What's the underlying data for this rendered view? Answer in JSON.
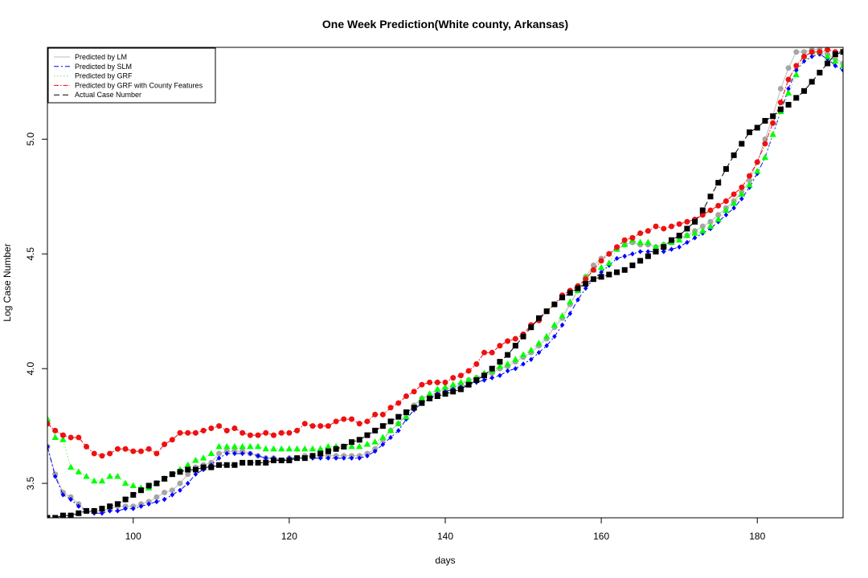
{
  "chart_data": {
    "type": "line",
    "title": "One Week Prediction(White county, Arkansas)",
    "xlabel": "days",
    "ylabel": "Log Case Number",
    "xlim": [
      89,
      191
    ],
    "ylim": [
      3.35,
      5.4
    ],
    "xticks": [
      100,
      120,
      140,
      160,
      180
    ],
    "yticks": [
      3.5,
      4.0,
      4.5,
      5.0
    ],
    "xtick_labels": [
      "100",
      "120",
      "140",
      "160",
      "180"
    ],
    "ytick_labels": [
      "3.5",
      "4.0",
      "4.5",
      "5.0"
    ],
    "grid": false,
    "legend_position": "top-left",
    "x": [
      89,
      90,
      91,
      92,
      93,
      94,
      95,
      96,
      97,
      98,
      99,
      100,
      101,
      102,
      103,
      104,
      105,
      106,
      107,
      108,
      109,
      110,
      111,
      112,
      113,
      114,
      115,
      116,
      117,
      118,
      119,
      120,
      121,
      122,
      123,
      124,
      125,
      126,
      127,
      128,
      129,
      130,
      131,
      132,
      133,
      134,
      135,
      136,
      137,
      138,
      139,
      140,
      141,
      142,
      143,
      144,
      145,
      146,
      147,
      148,
      149,
      150,
      151,
      152,
      153,
      154,
      155,
      156,
      157,
      158,
      159,
      160,
      161,
      162,
      163,
      164,
      165,
      166,
      167,
      168,
      169,
      170,
      171,
      172,
      173,
      174,
      175,
      176,
      177,
      178,
      179,
      180,
      181,
      182,
      183,
      184,
      185,
      186,
      187,
      188,
      189,
      190,
      191
    ],
    "series": [
      {
        "name": "Predicted by LM",
        "line_color": "#bbbbbb",
        "marker_color": "#a6a6a6",
        "dash": "",
        "marker": "circle",
        "values": [
          3.66,
          3.54,
          3.46,
          3.44,
          3.41,
          3.38,
          3.38,
          3.38,
          3.39,
          3.4,
          3.4,
          3.4,
          3.41,
          3.42,
          3.44,
          3.46,
          3.47,
          3.5,
          3.54,
          3.57,
          3.58,
          3.59,
          3.63,
          3.64,
          3.64,
          3.64,
          3.63,
          3.62,
          3.61,
          3.61,
          3.6,
          3.61,
          3.61,
          3.62,
          3.62,
          3.62,
          3.62,
          3.62,
          3.62,
          3.62,
          3.62,
          3.63,
          3.65,
          3.69,
          3.73,
          3.76,
          3.8,
          3.84,
          3.87,
          3.88,
          3.9,
          3.91,
          3.92,
          3.93,
          3.95,
          3.96,
          3.97,
          3.98,
          4.0,
          4.01,
          4.03,
          4.05,
          4.07,
          4.1,
          4.13,
          4.18,
          4.22,
          4.28,
          4.34,
          4.4,
          4.45,
          4.48,
          4.5,
          4.52,
          4.54,
          4.55,
          4.54,
          4.54,
          4.53,
          4.54,
          4.55,
          4.57,
          4.58,
          4.6,
          4.62,
          4.64,
          4.67,
          4.7,
          4.73,
          4.77,
          4.82,
          4.9,
          5.0,
          5.1,
          5.22,
          5.31,
          5.38,
          5.38,
          5.39,
          5.39,
          5.37,
          5.35,
          5.33
        ]
      },
      {
        "name": "Predicted by SLM",
        "line_color": "#0000ff",
        "marker_color": "#0000ff",
        "dash": "6 3 2 3",
        "marker": "diamond",
        "values": [
          3.66,
          3.53,
          3.45,
          3.43,
          3.4,
          3.38,
          3.37,
          3.37,
          3.38,
          3.38,
          3.39,
          3.39,
          3.4,
          3.41,
          3.42,
          3.43,
          3.45,
          3.47,
          3.5,
          3.54,
          3.56,
          3.58,
          3.61,
          3.63,
          3.63,
          3.63,
          3.63,
          3.62,
          3.61,
          3.61,
          3.6,
          3.61,
          3.61,
          3.61,
          3.61,
          3.61,
          3.61,
          3.61,
          3.61,
          3.61,
          3.61,
          3.62,
          3.64,
          3.67,
          3.7,
          3.73,
          3.78,
          3.82,
          3.85,
          3.87,
          3.89,
          3.9,
          3.91,
          3.92,
          3.93,
          3.94,
          3.95,
          3.96,
          3.97,
          3.99,
          4.0,
          4.02,
          4.04,
          4.07,
          4.1,
          4.14,
          4.19,
          4.24,
          4.3,
          4.35,
          4.39,
          4.42,
          4.45,
          4.48,
          4.49,
          4.5,
          4.51,
          4.51,
          4.51,
          4.51,
          4.52,
          4.53,
          4.55,
          4.57,
          4.59,
          4.61,
          4.64,
          4.67,
          4.7,
          4.74,
          4.79,
          4.85,
          4.92,
          5.02,
          5.12,
          5.22,
          5.3,
          5.34,
          5.36,
          5.37,
          5.35,
          5.32,
          5.3
        ]
      },
      {
        "name": "Predicted by GRF",
        "line_color": "#7fe07f",
        "marker_color": "#00ff00",
        "dash": "1.5 2.5",
        "marker": "triangle",
        "values": [
          3.78,
          3.7,
          3.69,
          3.57,
          3.55,
          3.53,
          3.51,
          3.51,
          3.53,
          3.53,
          3.5,
          3.49,
          3.48,
          3.48,
          3.5,
          3.52,
          3.54,
          3.56,
          3.58,
          3.6,
          3.61,
          3.63,
          3.66,
          3.66,
          3.66,
          3.66,
          3.66,
          3.66,
          3.65,
          3.65,
          3.65,
          3.65,
          3.65,
          3.65,
          3.65,
          3.65,
          3.66,
          3.66,
          3.66,
          3.66,
          3.66,
          3.67,
          3.68,
          3.7,
          3.73,
          3.76,
          3.79,
          3.83,
          3.87,
          3.89,
          3.91,
          3.92,
          3.93,
          3.94,
          3.95,
          3.96,
          3.98,
          3.99,
          4.01,
          4.02,
          4.04,
          4.06,
          4.08,
          4.11,
          4.14,
          4.19,
          4.23,
          4.29,
          4.34,
          4.4,
          4.43,
          4.44,
          4.46,
          4.52,
          4.54,
          4.56,
          4.55,
          4.55,
          4.53,
          4.54,
          4.55,
          4.56,
          4.58,
          4.59,
          4.6,
          4.62,
          4.65,
          4.69,
          4.72,
          4.76,
          4.8,
          4.86,
          4.92,
          5.02,
          5.12,
          5.2,
          5.28,
          5.36,
          5.38,
          5.38,
          5.36,
          5.34,
          5.32
        ]
      },
      {
        "name": "Predicted by GRF with County Features",
        "line_color": "#ff0000",
        "marker_color": "#ee1111",
        "dash": "6 2 1.5 2",
        "marker": "circle",
        "values": [
          3.76,
          3.73,
          3.71,
          3.7,
          3.7,
          3.66,
          3.63,
          3.62,
          3.63,
          3.65,
          3.65,
          3.64,
          3.64,
          3.65,
          3.63,
          3.67,
          3.69,
          3.72,
          3.72,
          3.72,
          3.73,
          3.74,
          3.75,
          3.73,
          3.74,
          3.72,
          3.71,
          3.71,
          3.72,
          3.71,
          3.72,
          3.72,
          3.73,
          3.76,
          3.75,
          3.75,
          3.75,
          3.77,
          3.78,
          3.78,
          3.76,
          3.77,
          3.8,
          3.8,
          3.83,
          3.85,
          3.88,
          3.9,
          3.93,
          3.94,
          3.94,
          3.94,
          3.96,
          3.97,
          3.99,
          4.02,
          4.07,
          4.07,
          4.1,
          4.12,
          4.13,
          4.15,
          4.19,
          4.21,
          4.25,
          4.28,
          4.32,
          4.34,
          4.36,
          4.39,
          4.43,
          4.47,
          4.5,
          4.53,
          4.56,
          4.57,
          4.59,
          4.6,
          4.62,
          4.61,
          4.62,
          4.63,
          4.64,
          4.65,
          4.67,
          4.69,
          4.71,
          4.73,
          4.76,
          4.79,
          4.84,
          4.9,
          4.98,
          5.07,
          5.16,
          5.26,
          5.32,
          5.36,
          5.38,
          5.38,
          5.39,
          5.38,
          5.38
        ]
      },
      {
        "name": "Actual Case Number",
        "line_color": "#000000",
        "marker_color": "#000000",
        "dash": "7 4",
        "marker": "square",
        "values": [
          3.35,
          3.35,
          3.36,
          3.36,
          3.37,
          3.38,
          3.38,
          3.39,
          3.4,
          3.41,
          3.43,
          3.45,
          3.47,
          3.49,
          3.5,
          3.52,
          3.54,
          3.55,
          3.56,
          3.56,
          3.57,
          3.57,
          3.58,
          3.58,
          3.58,
          3.59,
          3.59,
          3.59,
          3.59,
          3.6,
          3.6,
          3.6,
          3.61,
          3.61,
          3.62,
          3.63,
          3.64,
          3.65,
          3.66,
          3.68,
          3.69,
          3.71,
          3.73,
          3.75,
          3.77,
          3.79,
          3.81,
          3.83,
          3.85,
          3.87,
          3.88,
          3.89,
          3.9,
          3.91,
          3.93,
          3.95,
          3.97,
          4.0,
          4.03,
          4.06,
          4.1,
          4.14,
          4.18,
          4.22,
          4.25,
          4.28,
          4.31,
          4.33,
          4.35,
          4.37,
          4.39,
          4.4,
          4.41,
          4.42,
          4.43,
          4.45,
          4.47,
          4.49,
          4.51,
          4.53,
          4.56,
          4.58,
          4.61,
          4.64,
          4.69,
          4.75,
          4.81,
          4.87,
          4.93,
          4.98,
          5.03,
          5.05,
          5.08,
          5.1,
          5.13,
          5.15,
          5.18,
          5.21,
          5.25,
          5.29,
          5.33,
          5.37,
          5.38
        ]
      }
    ]
  }
}
